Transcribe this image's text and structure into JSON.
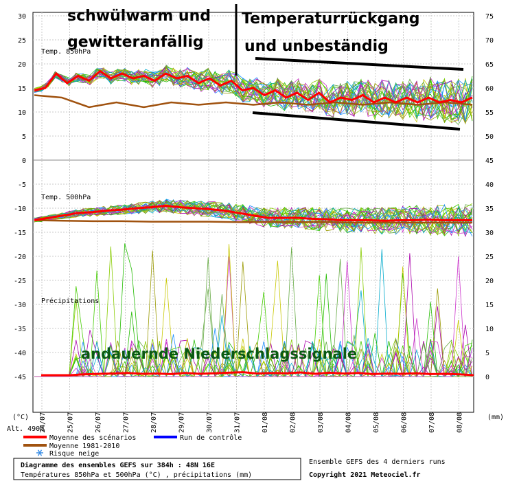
{
  "chart_data": {
    "type": "line",
    "title": "Diagramme des ensembles GEFS sur 384h : 48N 16E",
    "subtitle": "Températures 850hPa et 500hPa (°C) , précipitations (mm)",
    "x_labels": [
      "24/07",
      "25/07",
      "26/07",
      "27/07",
      "28/07",
      "29/07",
      "30/07",
      "31/07",
      "01/08",
      "02/08",
      "03/08",
      "04/08",
      "05/08",
      "06/08",
      "07/08",
      "08/08"
    ],
    "panels": [
      {
        "name": "Temp. 850hPa",
        "left_axis": {
          "ticks": [
            30,
            25,
            20,
            15,
            10,
            5,
            0
          ],
          "range": [
            0,
            30
          ]
        },
        "right_axis": {
          "ticks": [
            75,
            70,
            65,
            60,
            55,
            50,
            45
          ]
        },
        "series": [
          {
            "name": "Moyenne des scénarios",
            "values": [
              14.5,
              15,
              18,
              16,
              17.5,
              16.5,
              18.5,
              17,
              18,
              17,
              17.5,
              16.5,
              18,
              17,
              17.5,
              16,
              17,
              15.5,
              16.5,
              14.5,
              15,
              13.5,
              14.5,
              13,
              14,
              12.5,
              14,
              12,
              13,
              12.5,
              13.5,
              12,
              13,
              12,
              13,
              12,
              13,
              12,
              12.5,
              12,
              13
            ]
          },
          {
            "name": "Moyenne 1981-2010",
            "values": [
              13.5,
              13,
              11,
              12,
              11,
              12,
              11.5,
              12,
              11.5,
              12,
              11.5,
              12,
              11.5,
              12,
              11.5,
              12,
              11.5
            ]
          }
        ]
      },
      {
        "name": "Temp. 500hPa",
        "left_axis": {
          "ticks": [
            -5,
            -10,
            -15,
            -20,
            -25,
            -30,
            -35,
            -40,
            -45
          ],
          "range": [
            -45,
            0
          ]
        },
        "right_axis": {
          "ticks": [
            40,
            35,
            30,
            25,
            20,
            15,
            10,
            5,
            0
          ]
        },
        "series": [
          {
            "name": "Moyenne des scénarios",
            "values": [
              -12.5,
              -12,
              -11.5,
              -11,
              -10.8,
              -10.5,
              -10.3,
              -10,
              -9.8,
              -9.5,
              -9.8,
              -10,
              -10.2,
              -10.5,
              -11,
              -11.5,
              -12,
              -12,
              -12,
              -12.2,
              -12.3,
              -12.5,
              -12.5,
              -12.5,
              -12.6,
              -12.5,
              -12.5,
              -12.4,
              -12.5,
              -12.5,
              -12.5
            ]
          },
          {
            "name": "Moyenne 1981-2010",
            "values": [
              -12.5,
              -12.6,
              -12.7,
              -12.7,
              -12.8,
              -12.8,
              -12.8,
              -12.9,
              -12.9,
              -12.9,
              -12.9,
              -13,
              -13,
              -13,
              -13,
              -13
            ]
          }
        ]
      },
      {
        "name": "Précipitations",
        "right_axis_unit": "mm",
        "series": [
          {
            "name": "Moyenne des scénarios",
            "values": [
              0,
              0,
              0,
              0.3,
              0.5,
              0.6,
              0.8,
              0.5,
              0.6,
              0.4,
              0.8,
              0.5,
              0.7,
              0.9,
              1.1,
              0.6,
              0.8,
              0.7,
              1,
              0.5,
              0.9,
              0.6,
              0.8,
              0.4,
              0.6,
              0.5,
              0.7,
              0.4,
              0.5,
              0.3,
              0
            ]
          }
        ]
      }
    ],
    "legend": [
      {
        "label": "Moyenne des scénarios",
        "color": "#ff0000"
      },
      {
        "label": "Moyenne 1981-2010",
        "color": "#a0520f"
      },
      {
        "label": "Run de contrôle",
        "color": "#0000ff"
      },
      {
        "label": "Risque neige",
        "color": "#3a8ee6"
      }
    ],
    "annotations": [
      "schwülwarm und",
      "gewitteranfällig",
      "Temperaturrückgang",
      "und unbeständig",
      "andauernde Niederschlagssignale"
    ]
  },
  "ui": {
    "unit_left": "(°C)",
    "unit_right": "(mm)",
    "altitude": "Alt. 490m",
    "footer_right_1": "Ensemble GEFS des 4 derniers runs",
    "footer_right_2": "Copyright 2021 Meteociel.fr"
  },
  "colors": {
    "mean": "#ff0000",
    "clim": "#a0520f",
    "control": "#0000ff",
    "members": [
      "#22bb00",
      "#44cc00",
      "#88cc00",
      "#c8c800",
      "#aa00aa",
      "#00aacc",
      "#1e90ff",
      "#66aa44",
      "#999900",
      "#cc33cc"
    ]
  }
}
